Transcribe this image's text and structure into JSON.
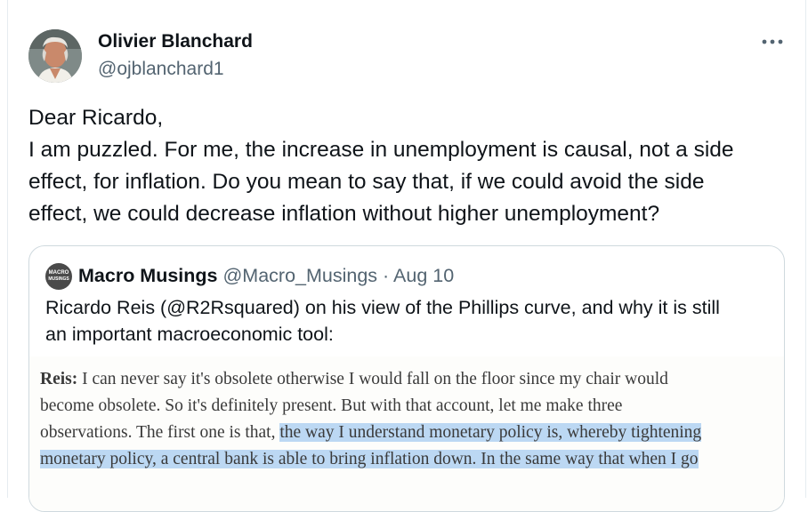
{
  "author": {
    "name": "Olivier Blanchard",
    "handle": "@ojblanchard1"
  },
  "tweet": {
    "lines": [
      "Dear Ricardo,",
      "I am puzzled.  For me, the increase in unemployment is causal, not a side",
      "effect, for inflation.  Do you mean to say that, if we could avoid the side",
      "effect, we could decrease inflation without higher unemployment?"
    ]
  },
  "quote": {
    "avatar_text_1": "MACRO",
    "avatar_text_2": "MUSINGS",
    "name": "Macro Musings",
    "handle": "@Macro_Musings",
    "separator": "·",
    "date": "Aug 10",
    "text_lines": [
      "Ricardo Reis (@R2Rsquared) on his view of the Phillips curve, and why it is still",
      "an important macroeconomic tool:"
    ],
    "excerpt": {
      "speaker": "Reis:",
      "line1_rest": " I can never say it's obsolete otherwise I would fall on the floor since my chair would",
      "line2": "become obsolete. So it's definitely present. But with that account, let me make three",
      "line3_plain": "observations. The first one is that, ",
      "line3_highlight": "the way I understand monetary policy is, whereby tightening",
      "line4_highlight": "monetary policy, a central bank is able to bring inflation down. In the same way that when I go"
    }
  },
  "icons": {
    "more": "more-horizontal-icon",
    "avatar": "profile-photo"
  },
  "colors": {
    "text": "#0f1419",
    "secondary": "#536471",
    "border": "#cfd9de",
    "highlight": "#bcd8f3"
  }
}
